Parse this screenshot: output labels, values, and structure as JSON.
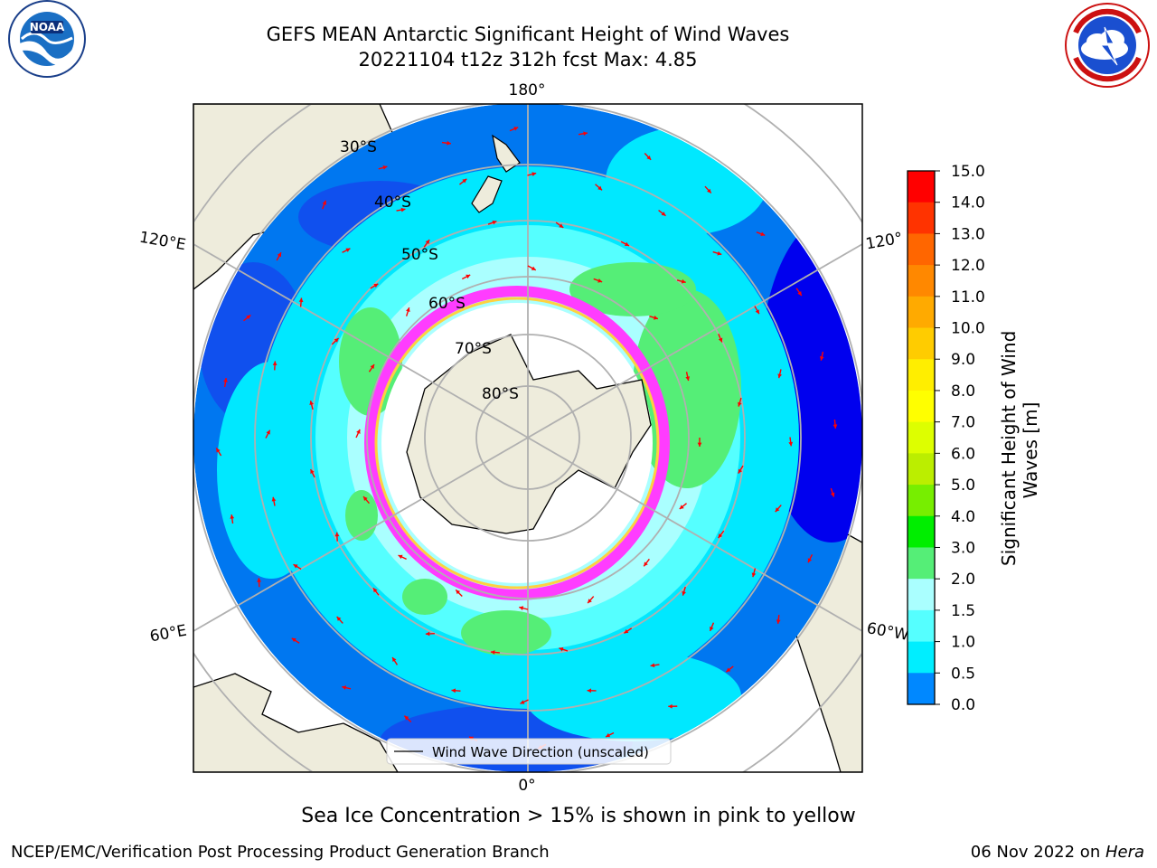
{
  "header": {
    "title_line1": "GEFS MEAN Antarctic Significant Height of Wind Waves",
    "title_line2": "20221104 t12z 312h fcst   Max: 4.85"
  },
  "logos": {
    "left": {
      "text": "NOAA",
      "ring_text": "NATIONAL OCEANIC AND ATMOSPHERIC ADMINISTRATION · U.S. DEPARTMENT OF COMMERCE"
    },
    "right": {
      "ring_text": "NATIONAL WEATHER SERVICE"
    }
  },
  "map": {
    "lon_labels": {
      "top": "180°",
      "bottom": "0°",
      "left_upper": "120°E",
      "left_lower": "60°E",
      "right_upper": "120°",
      "right_lower": "60°W"
    },
    "lat_labels": [
      "30°S",
      "40°S",
      "50°S",
      "60°S",
      "70°S",
      "80°S"
    ],
    "legend_label": "Wind Wave Direction (unscaled)",
    "colors": {
      "land": "#eeecdc",
      "ice_pink": "#ff3cff",
      "ice_yellow": "#ffd040",
      "arrow": "#ff0000",
      "grid": "#b0b0b0"
    }
  },
  "colorbar": {
    "label": "Significant Height of Wind Waves [m]",
    "label_line1": "Significant Height of Wind",
    "label_line2": "Waves [m]",
    "ticks": [
      "15.0",
      "14.0",
      "13.0",
      "12.0",
      "11.0",
      "10.0",
      "9.0",
      "8.0",
      "7.0",
      "6.0",
      "5.0",
      "4.0",
      "3.0",
      "2.0",
      "1.5",
      "1.0",
      "0.5",
      "0.0"
    ],
    "colors_top_to_bottom": [
      "#ff0000",
      "#ff3300",
      "#ff6600",
      "#ff8800",
      "#ffaa00",
      "#ffcc00",
      "#ffee00",
      "#ffff00",
      "#ddff00",
      "#bbee00",
      "#77ee00",
      "#00ee00",
      "#55ee77",
      "#aaffff",
      "#55ffff",
      "#00eeff",
      "#0088ff",
      "#0000ff"
    ]
  },
  "caption": "Sea Ice Concentration > 15% is shown in pink to yellow",
  "footer": {
    "left": "NCEP/EMC/Verification Post Processing Product Generation Branch",
    "right_date": "06 Nov 2022 on ",
    "right_machine": "Hera"
  }
}
